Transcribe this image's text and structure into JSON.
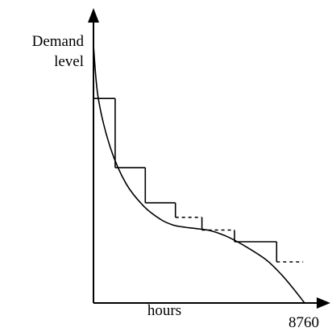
{
  "chart_data": {
    "type": "line",
    "title": "",
    "ylabel_lines": [
      "Demand",
      "level"
    ],
    "xlabel": "hours",
    "x_end_tick": "8760",
    "xlim": [
      0,
      8760
    ],
    "ylim": [
      0,
      1
    ],
    "axes": {
      "x_arrow": true,
      "y_arrow": true,
      "grid": false
    },
    "colors": {
      "line": "#000000"
    },
    "series": [
      {
        "kind": "curve",
        "x": [
          0,
          200,
          700,
          1350,
          2100,
          2800,
          3300,
          3800,
          4300,
          4900,
          5600,
          6400,
          7200,
          7800,
          8300,
          8760
        ],
        "y": [
          0.907,
          0.721,
          0.548,
          0.421,
          0.34,
          0.294,
          0.275,
          0.267,
          0.262,
          0.254,
          0.232,
          0.195,
          0.15,
          0.1,
          0.05,
          0.0
        ]
      },
      {
        "kind": "step",
        "steps": [
          {
            "x0": 0,
            "x1": 900,
            "y": 0.721,
            "style": "solid"
          },
          {
            "x0": 900,
            "x1": 2150,
            "y": 0.477,
            "style": "solid"
          },
          {
            "x0": 2150,
            "x1": 3400,
            "y": 0.353,
            "style": "solid"
          },
          {
            "x0": 3400,
            "x1": 4500,
            "y": 0.302,
            "style": "dashed"
          },
          {
            "x0": 4500,
            "x1": 5850,
            "y": 0.257,
            "style": "dashed"
          },
          {
            "x0": 5850,
            "x1": 7600,
            "y": 0.216,
            "style": "solid"
          },
          {
            "x0": 7600,
            "x1": 8700,
            "y": 0.145,
            "style": "dashed"
          }
        ]
      }
    ]
  }
}
